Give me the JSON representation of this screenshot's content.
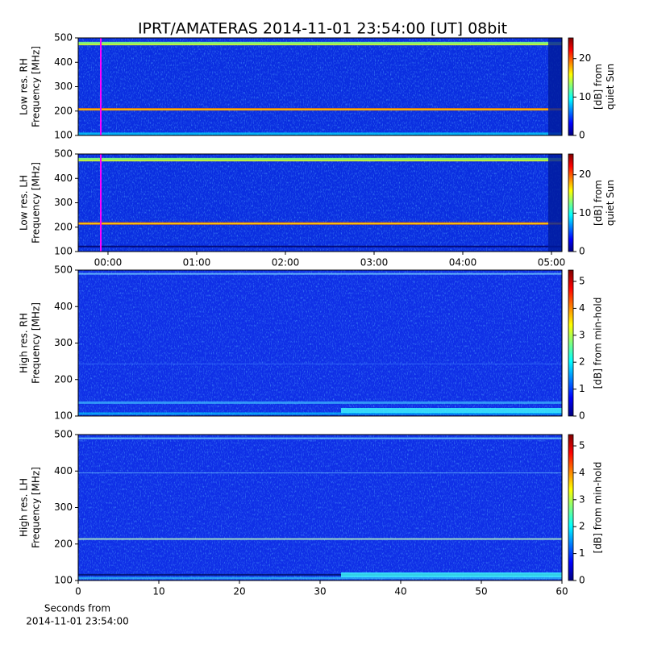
{
  "title": "IPRT/AMATERAS 2014-11-01 23:54:00 [UT]   08bit",
  "chart_data": [
    {
      "type": "spectrogram",
      "ylabel": [
        "Low res. RH",
        "Frequency [MHz]"
      ],
      "ylim": [
        100,
        500
      ],
      "yticks": [
        100,
        200,
        300,
        400,
        500
      ],
      "xlim": [
        -0.336,
        5.118
      ],
      "colormap": "jet",
      "clim": [
        0,
        25.4
      ],
      "cticks": [
        0,
        10,
        20
      ],
      "clabel": [
        "[dB] from",
        "quiet Sun"
      ]
    },
    {
      "type": "spectrogram",
      "ylabel": [
        "Low res. LH",
        "Frequency [MHz]"
      ],
      "ylim": [
        100,
        500
      ],
      "yticks": [
        100,
        200,
        300,
        400,
        500
      ],
      "xlim": [
        -0.336,
        5.118
      ],
      "xticks": [
        {
          "value": 0,
          "label": "00:00"
        },
        {
          "value": 1,
          "label": "01:00"
        },
        {
          "value": 2,
          "label": "02:00"
        },
        {
          "value": 3,
          "label": "03:00"
        },
        {
          "value": 4,
          "label": "04:00"
        },
        {
          "value": 5,
          "label": "05:00"
        }
      ],
      "colormap": "jet",
      "clim": [
        0,
        25.4
      ],
      "cticks": [
        0,
        10,
        20
      ],
      "clabel": [
        "[dB] from",
        "quiet Sun"
      ]
    },
    {
      "type": "spectrogram",
      "ylabel": [
        "High res. RH",
        "Frequency [MHz]"
      ],
      "ylim": [
        100,
        500
      ],
      "yticks": [
        100,
        200,
        300,
        400,
        500
      ],
      "xlim": [
        0,
        60
      ],
      "colormap": "jet",
      "clim": [
        0,
        5.42
      ],
      "cticks": [
        0,
        1,
        2,
        3,
        4,
        5
      ],
      "clabel": [
        "[dB] from min-hold"
      ]
    },
    {
      "type": "spectrogram",
      "ylabel": [
        "High res. LH",
        "Frequency [MHz]"
      ],
      "ylim": [
        100,
        500
      ],
      "yticks": [
        100,
        200,
        300,
        400,
        500
      ],
      "xlim": [
        0,
        60
      ],
      "xticks": [
        0,
        10,
        20,
        30,
        40,
        50,
        60
      ],
      "xlabel": [
        "Seconds from",
        "2014-11-01 23:54:00"
      ],
      "colormap": "jet",
      "clim": [
        0,
        5.42
      ],
      "cticks": [
        0,
        1,
        2,
        3,
        4,
        5
      ],
      "clabel": [
        "[dB] from min-hold"
      ]
    }
  ]
}
